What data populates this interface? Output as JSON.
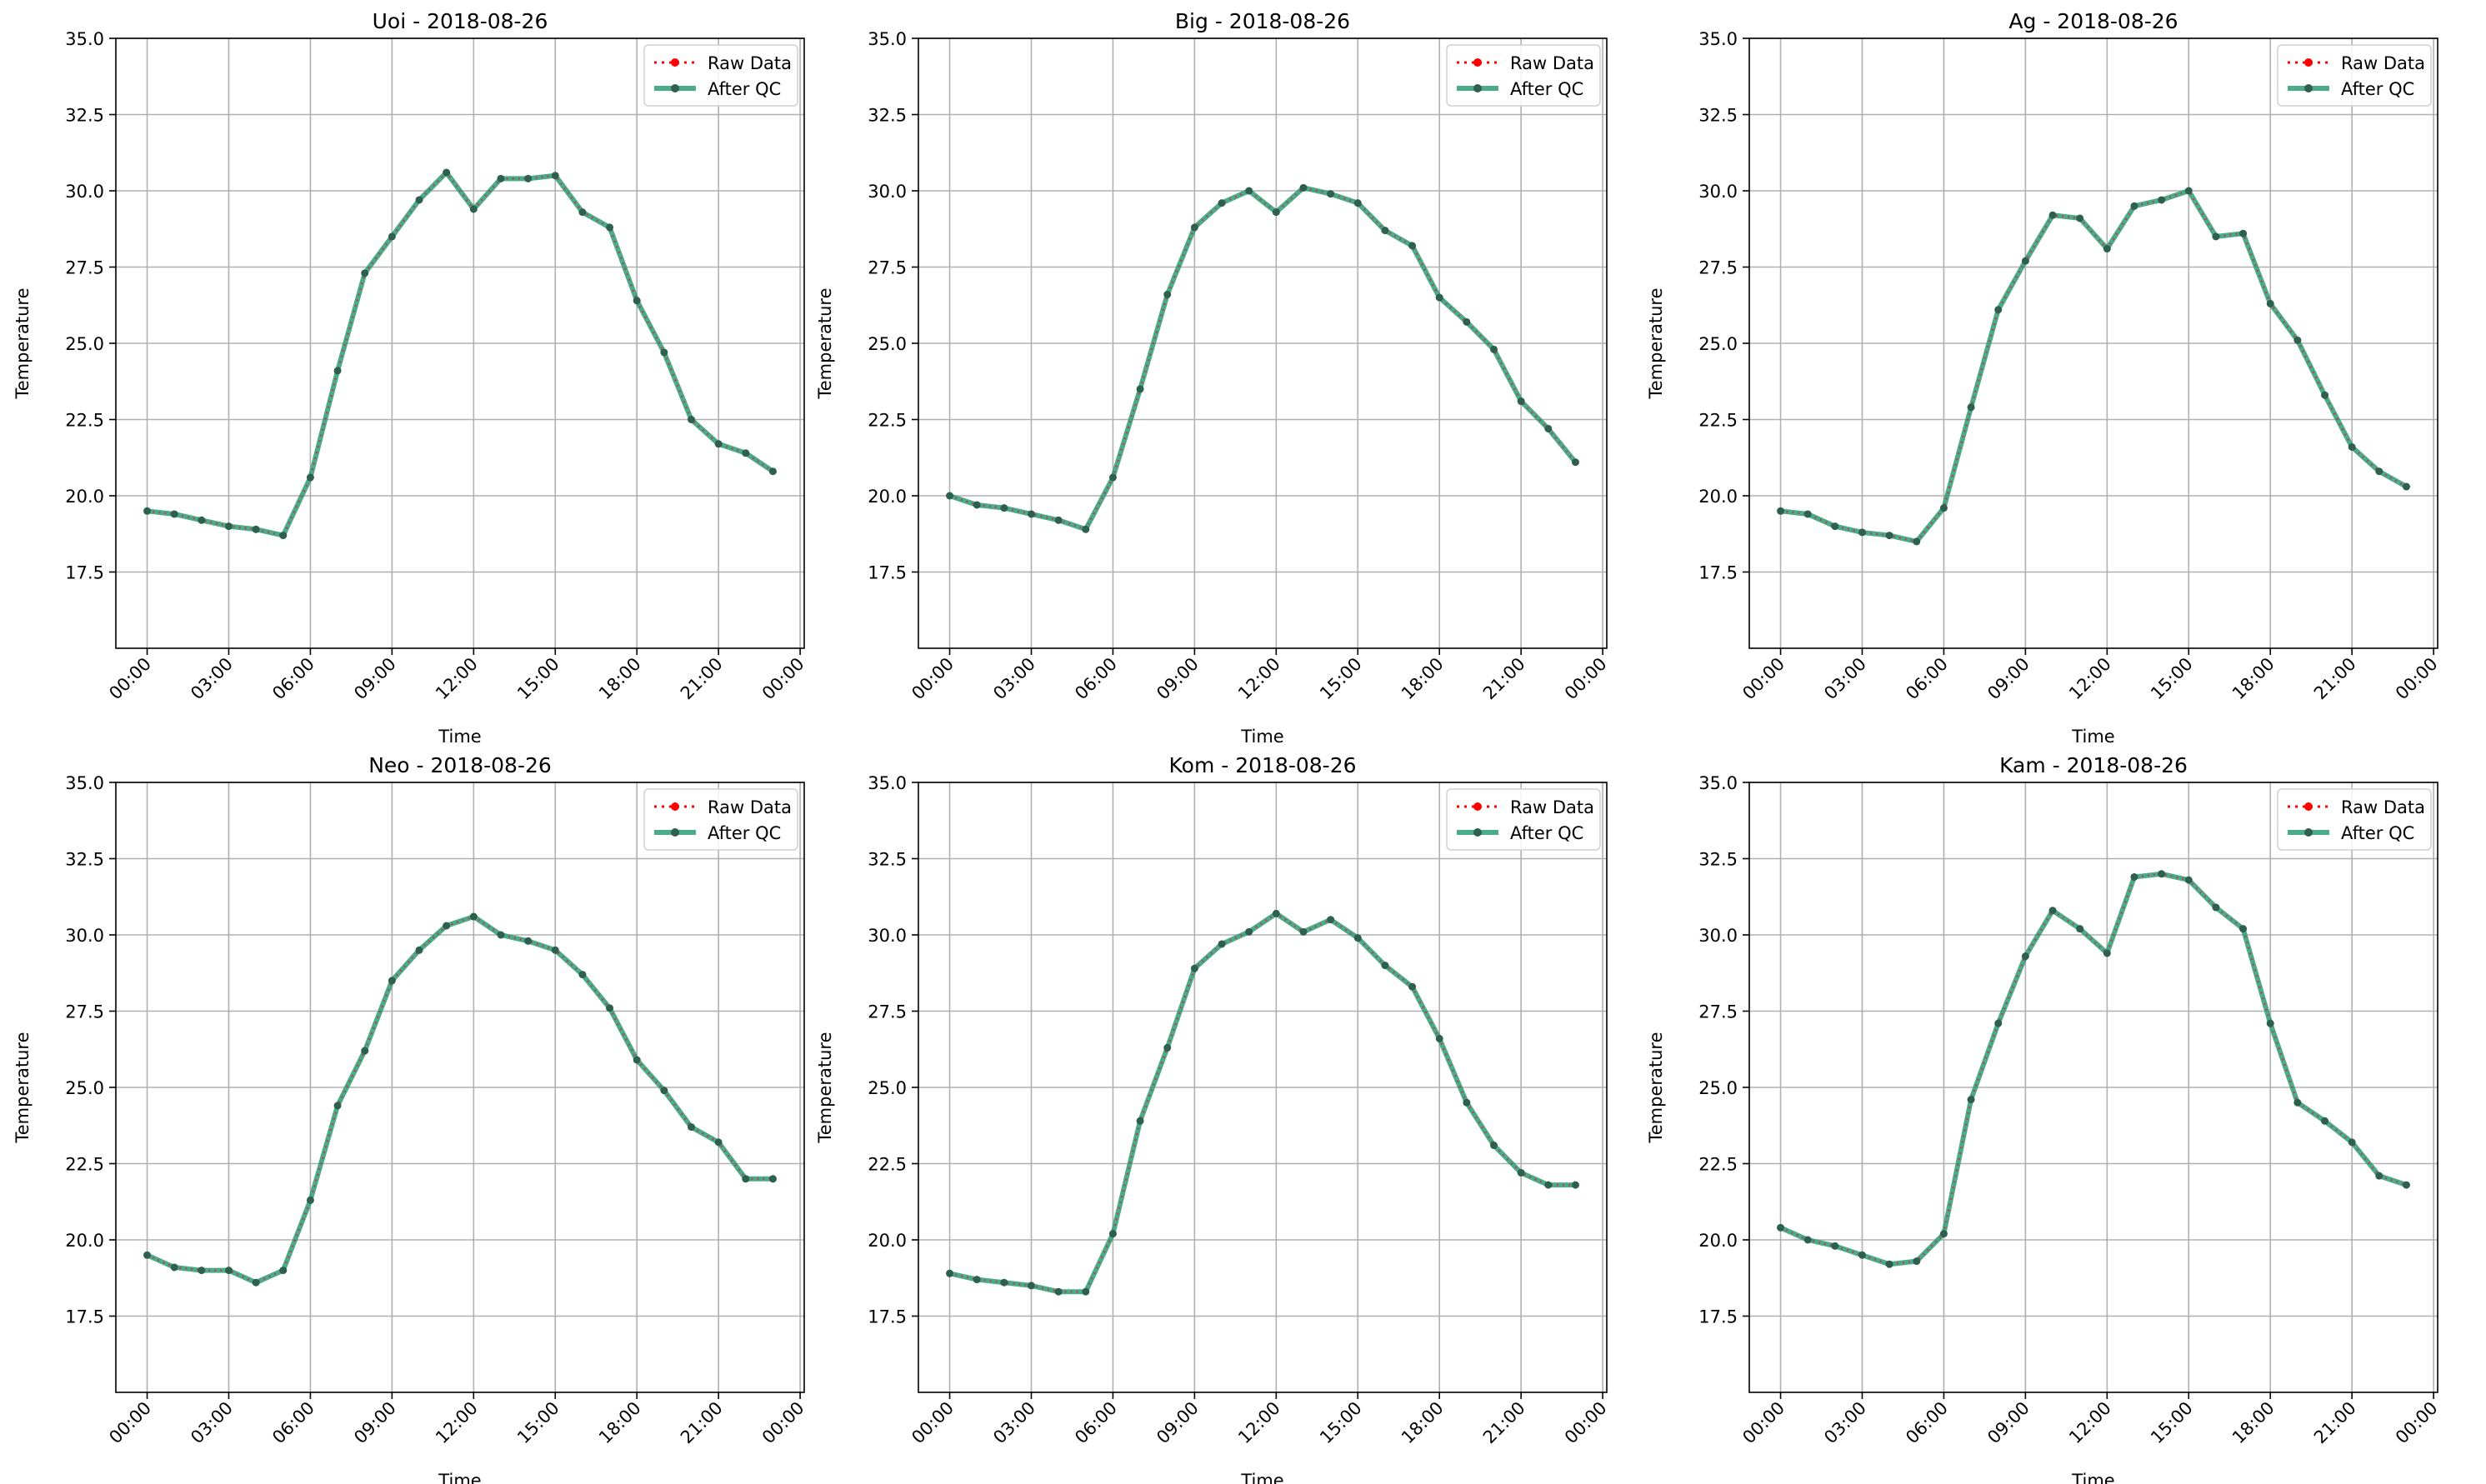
{
  "legend": {
    "raw_label": "Raw Data",
    "qc_label": "After QC",
    "placement": "upper right"
  },
  "colors": {
    "raw": "#ff0000",
    "qc": "#2a9d78",
    "marker": "#2f5f4f",
    "grid": "#b0b0b0"
  },
  "chart_data": [
    {
      "type": "line",
      "title": "Uoi - 2018-08-26",
      "xlabel": "Time",
      "ylabel": "Temperature",
      "ylim": [
        15.0,
        35.0
      ],
      "yticks": [
        "17.5",
        "20.0",
        "22.5",
        "25.0",
        "27.5",
        "30.0",
        "32.5",
        "35.0"
      ],
      "xticks": [
        "00:00",
        "03:00",
        "06:00",
        "09:00",
        "12:00",
        "15:00",
        "18:00",
        "21:00",
        "00:00"
      ],
      "grid": true,
      "x_hours": [
        0,
        1,
        2,
        3,
        4,
        5,
        6,
        7,
        8,
        9,
        10,
        11,
        12,
        13,
        14,
        15,
        16,
        17,
        18,
        19,
        20,
        21,
        22,
        23
      ],
      "series": [
        {
          "name": "Raw Data",
          "values": [
            19.5,
            19.4,
            19.2,
            19.0,
            18.9,
            18.7,
            20.6,
            24.1,
            27.3,
            28.5,
            29.7,
            30.6,
            29.4,
            30.4,
            30.4,
            30.5,
            29.3,
            28.8,
            26.4,
            24.7,
            22.5,
            21.7,
            21.4,
            20.8
          ]
        },
        {
          "name": "After QC",
          "values": [
            19.5,
            19.4,
            19.2,
            19.0,
            18.9,
            18.7,
            20.6,
            24.1,
            27.3,
            28.5,
            29.7,
            30.6,
            29.4,
            30.4,
            30.4,
            30.5,
            29.3,
            28.8,
            26.4,
            24.7,
            22.5,
            21.7,
            21.4,
            20.8
          ]
        }
      ]
    },
    {
      "type": "line",
      "title": "Big - 2018-08-26",
      "xlabel": "Time",
      "ylabel": "Temperature",
      "ylim": [
        15.0,
        35.0
      ],
      "yticks": [
        "17.5",
        "20.0",
        "22.5",
        "25.0",
        "27.5",
        "30.0",
        "32.5",
        "35.0"
      ],
      "xticks": [
        "00:00",
        "03:00",
        "06:00",
        "09:00",
        "12:00",
        "15:00",
        "18:00",
        "21:00",
        "00:00"
      ],
      "grid": true,
      "x_hours": [
        0,
        1,
        2,
        3,
        4,
        5,
        6,
        7,
        8,
        9,
        10,
        11,
        12,
        13,
        14,
        15,
        16,
        17,
        18,
        19,
        20,
        21,
        22,
        23
      ],
      "series": [
        {
          "name": "Raw Data",
          "values": [
            20.0,
            19.7,
            19.6,
            19.4,
            19.2,
            18.9,
            20.6,
            23.5,
            26.6,
            28.8,
            29.6,
            30.0,
            29.3,
            30.1,
            29.9,
            29.6,
            28.7,
            28.2,
            26.5,
            25.7,
            24.8,
            23.1,
            22.2,
            21.1
          ]
        },
        {
          "name": "After QC",
          "values": [
            20.0,
            19.7,
            19.6,
            19.4,
            19.2,
            18.9,
            20.6,
            23.5,
            26.6,
            28.8,
            29.6,
            30.0,
            29.3,
            30.1,
            29.9,
            29.6,
            28.7,
            28.2,
            26.5,
            25.7,
            24.8,
            23.1,
            22.2,
            21.1
          ]
        }
      ]
    },
    {
      "type": "line",
      "title": "Ag - 2018-08-26",
      "xlabel": "Time",
      "ylabel": "Temperature",
      "ylim": [
        15.0,
        35.0
      ],
      "yticks": [
        "17.5",
        "20.0",
        "22.5",
        "25.0",
        "27.5",
        "30.0",
        "32.5",
        "35.0"
      ],
      "xticks": [
        "00:00",
        "03:00",
        "06:00",
        "09:00",
        "12:00",
        "15:00",
        "18:00",
        "21:00",
        "00:00"
      ],
      "grid": true,
      "x_hours": [
        0,
        1,
        2,
        3,
        4,
        5,
        6,
        7,
        8,
        9,
        10,
        11,
        12,
        13,
        14,
        15,
        16,
        17,
        18,
        19,
        20,
        21,
        22,
        23
      ],
      "series": [
        {
          "name": "Raw Data",
          "values": [
            19.5,
            19.4,
            19.0,
            18.8,
            18.7,
            18.5,
            19.6,
            22.9,
            26.1,
            27.7,
            29.2,
            29.1,
            28.1,
            29.5,
            29.7,
            30.0,
            28.5,
            28.6,
            26.3,
            25.1,
            23.3,
            21.6,
            20.8,
            20.3
          ]
        },
        {
          "name": "After QC",
          "values": [
            19.5,
            19.4,
            19.0,
            18.8,
            18.7,
            18.5,
            19.6,
            22.9,
            26.1,
            27.7,
            29.2,
            29.1,
            28.1,
            29.5,
            29.7,
            30.0,
            28.5,
            28.6,
            26.3,
            25.1,
            23.3,
            21.6,
            20.8,
            20.3
          ]
        }
      ]
    },
    {
      "type": "line",
      "title": "Neo - 2018-08-26",
      "xlabel": "Time",
      "ylabel": "Temperature",
      "ylim": [
        15.0,
        35.0
      ],
      "yticks": [
        "17.5",
        "20.0",
        "22.5",
        "25.0",
        "27.5",
        "30.0",
        "32.5",
        "35.0"
      ],
      "xticks": [
        "00:00",
        "03:00",
        "06:00",
        "09:00",
        "12:00",
        "15:00",
        "18:00",
        "21:00",
        "00:00"
      ],
      "grid": true,
      "x_hours": [
        0,
        1,
        2,
        3,
        4,
        5,
        6,
        7,
        8,
        9,
        10,
        11,
        12,
        13,
        14,
        15,
        16,
        17,
        18,
        19,
        20,
        21,
        22,
        23
      ],
      "series": [
        {
          "name": "Raw Data",
          "values": [
            19.5,
            19.1,
            19.0,
            19.0,
            18.6,
            19.0,
            21.3,
            24.4,
            26.2,
            28.5,
            29.5,
            30.3,
            30.6,
            30.0,
            29.8,
            29.5,
            28.7,
            27.6,
            25.9,
            24.9,
            23.7,
            23.2,
            22.0,
            22.0
          ]
        },
        {
          "name": "After QC",
          "values": [
            19.5,
            19.1,
            19.0,
            19.0,
            18.6,
            19.0,
            21.3,
            24.4,
            26.2,
            28.5,
            29.5,
            30.3,
            30.6,
            30.0,
            29.8,
            29.5,
            28.7,
            27.6,
            25.9,
            24.9,
            23.7,
            23.2,
            22.0,
            22.0
          ]
        }
      ]
    },
    {
      "type": "line",
      "title": "Kom - 2018-08-26",
      "xlabel": "Time",
      "ylabel": "Temperature",
      "ylim": [
        15.0,
        35.0
      ],
      "yticks": [
        "17.5",
        "20.0",
        "22.5",
        "25.0",
        "27.5",
        "30.0",
        "32.5",
        "35.0"
      ],
      "xticks": [
        "00:00",
        "03:00",
        "06:00",
        "09:00",
        "12:00",
        "15:00",
        "18:00",
        "21:00",
        "00:00"
      ],
      "grid": true,
      "x_hours": [
        0,
        1,
        2,
        3,
        4,
        5,
        6,
        7,
        8,
        9,
        10,
        11,
        12,
        13,
        14,
        15,
        16,
        17,
        18,
        19,
        20,
        21,
        22,
        23
      ],
      "series": [
        {
          "name": "Raw Data",
          "values": [
            18.9,
            18.7,
            18.6,
            18.5,
            18.3,
            18.3,
            20.2,
            23.9,
            26.3,
            28.9,
            29.7,
            30.1,
            30.7,
            30.1,
            30.5,
            29.9,
            29.0,
            28.3,
            26.6,
            24.5,
            23.1,
            22.2,
            21.8,
            21.8
          ]
        },
        {
          "name": "After QC",
          "values": [
            18.9,
            18.7,
            18.6,
            18.5,
            18.3,
            18.3,
            20.2,
            23.9,
            26.3,
            28.9,
            29.7,
            30.1,
            30.7,
            30.1,
            30.5,
            29.9,
            29.0,
            28.3,
            26.6,
            24.5,
            23.1,
            22.2,
            21.8,
            21.8
          ]
        }
      ]
    },
    {
      "type": "line",
      "title": "Kam - 2018-08-26",
      "xlabel": "Time",
      "ylabel": "Temperature",
      "ylim": [
        15.0,
        35.0
      ],
      "yticks": [
        "17.5",
        "20.0",
        "22.5",
        "25.0",
        "27.5",
        "30.0",
        "32.5",
        "35.0"
      ],
      "xticks": [
        "00:00",
        "03:00",
        "06:00",
        "09:00",
        "12:00",
        "15:00",
        "18:00",
        "21:00",
        "00:00"
      ],
      "grid": true,
      "x_hours": [
        0,
        1,
        2,
        3,
        4,
        5,
        6,
        7,
        8,
        9,
        10,
        11,
        12,
        13,
        14,
        15,
        16,
        17,
        18,
        19,
        20,
        21,
        22,
        23
      ],
      "series": [
        {
          "name": "Raw Data",
          "values": [
            20.4,
            20.0,
            19.8,
            19.5,
            19.2,
            19.3,
            20.2,
            24.6,
            27.1,
            29.3,
            30.8,
            30.2,
            29.4,
            31.9,
            32.0,
            31.8,
            30.9,
            30.2,
            27.1,
            24.5,
            23.9,
            23.2,
            22.1,
            21.8
          ]
        },
        {
          "name": "After QC",
          "values": [
            20.4,
            20.0,
            19.8,
            19.5,
            19.2,
            19.3,
            20.2,
            24.6,
            27.1,
            29.3,
            30.8,
            30.2,
            29.4,
            31.9,
            32.0,
            31.8,
            30.9,
            30.2,
            27.1,
            24.5,
            23.9,
            23.2,
            22.1,
            21.8
          ]
        }
      ]
    }
  ]
}
